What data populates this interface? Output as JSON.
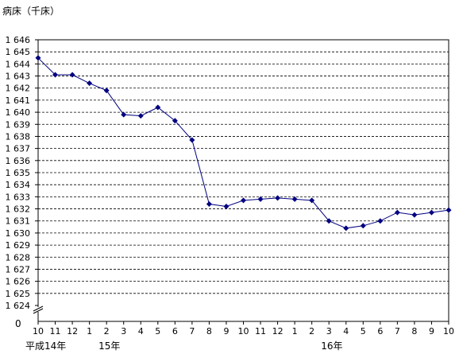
{
  "chart_data": {
    "type": "line",
    "ylabel": "病床（千床）",
    "y_ticks": [
      "1 624",
      "1 625",
      "1 626",
      "1 627",
      "1 628",
      "1 629",
      "1 630",
      "1 631",
      "1 632",
      "1 633",
      "1 634",
      "1 635",
      "1 636",
      "1 637",
      "1 638",
      "1 639",
      "1 640",
      "1 641",
      "1 642",
      "1 643",
      "1 644",
      "1 645",
      "1 646"
    ],
    "y_zero_label": "0",
    "ylim": [
      1624,
      1646
    ],
    "y_axis_break": true,
    "grid": "horizontal dashed",
    "categories": [
      "10",
      "11",
      "12",
      "1",
      "2",
      "3",
      "4",
      "5",
      "6",
      "7",
      "8",
      "9",
      "10",
      "11",
      "12",
      "1",
      "2",
      "3",
      "4",
      "5",
      "6",
      "7",
      "8",
      "9",
      "10"
    ],
    "year_labels": [
      {
        "text": "平成14年",
        "at_index": 0
      },
      {
        "text": "15年",
        "at_index": 4
      },
      {
        "text": "16年",
        "at_index": 17
      }
    ],
    "series": [
      {
        "color": "#000080",
        "marker": "diamond",
        "values": [
          1644.5,
          1643.1,
          1643.1,
          1642.4,
          1641.8,
          1639.8,
          1639.7,
          1640.4,
          1639.3,
          1637.7,
          1632.4,
          1632.2,
          1632.7,
          1632.8,
          1632.9,
          1632.8,
          1632.7,
          1631.0,
          1630.4,
          1630.6,
          1631.0,
          1631.7,
          1631.5,
          1631.7,
          1631.9
        ]
      }
    ]
  }
}
